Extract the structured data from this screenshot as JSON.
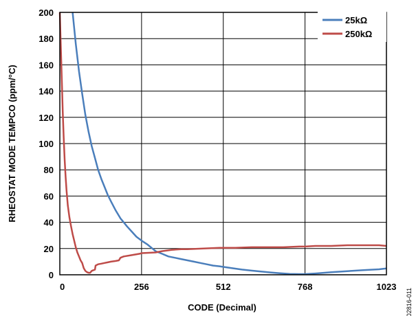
{
  "chart_data": {
    "type": "line",
    "title": "",
    "xlabel": "CODE (Decimal)",
    "ylabel": "RHEOSTAT MODE TEMPCO (ppm/°C)",
    "xlim": [
      0,
      1023
    ],
    "ylim": [
      0,
      200
    ],
    "x_ticks": [
      0,
      256,
      512,
      768,
      1023
    ],
    "x_tick_labels": [
      "0",
      "256",
      "512",
      "768",
      "1023"
    ],
    "y_ticks": [
      0,
      20,
      40,
      60,
      80,
      100,
      120,
      140,
      160,
      180,
      200
    ],
    "y_tick_labels": [
      "0",
      "20",
      "40",
      "60",
      "80",
      "100",
      "120",
      "140",
      "160",
      "180",
      "200"
    ],
    "grid": true,
    "legend_position": "top-right",
    "figure_id": "02816-011",
    "series": [
      {
        "name": "25kΩ",
        "color": "#4a7ebb",
        "x": [
          40,
          50,
          60,
          70,
          80,
          90,
          100,
          110,
          120,
          130,
          140,
          150,
          160,
          175,
          190,
          200,
          210,
          225,
          240,
          256,
          275,
          290,
          300,
          320,
          340,
          360,
          380,
          400,
          420,
          440,
          460,
          480,
          500,
          512,
          540,
          570,
          600,
          630,
          660,
          690,
          720,
          750,
          768,
          800,
          850,
          900,
          950,
          1000,
          1023
        ],
        "y": [
          200,
          176,
          155,
          138,
          122,
          109,
          98,
          89,
          80,
          73,
          67,
          61,
          56,
          49,
          43,
          40,
          37,
          33,
          29,
          26,
          23,
          20,
          18,
          16,
          14,
          13,
          12,
          11,
          10,
          9,
          8,
          7,
          6.5,
          6,
          5,
          4,
          3.2,
          2.5,
          1.8,
          1.2,
          0.7,
          0.5,
          0.5,
          1,
          2,
          2.8,
          3.5,
          4.2,
          4.8
        ]
      },
      {
        "name": "250kΩ",
        "color": "#be4b48",
        "x": [
          0,
          3,
          6,
          9,
          12,
          15,
          18,
          21,
          25,
          30,
          35,
          40,
          45,
          50,
          55,
          60,
          65,
          70,
          75,
          80,
          85,
          90,
          95,
          100,
          105,
          110,
          112,
          120,
          130,
          140,
          150,
          160,
          175,
          185,
          190,
          200,
          225,
          250,
          256,
          300,
          320,
          350,
          380,
          400,
          450,
          500,
          512,
          550,
          600,
          650,
          700,
          750,
          768,
          800,
          850,
          900,
          950,
          1000,
          1023
        ],
        "y": [
          200,
          175,
          150,
          125,
          105,
          88,
          75,
          64,
          53,
          44,
          37,
          31,
          26,
          21,
          17,
          14,
          11,
          9,
          5,
          3,
          2,
          1.5,
          1.5,
          3,
          3.5,
          4,
          7,
          8,
          8.5,
          9,
          9.5,
          10,
          10.5,
          11,
          13,
          14,
          15,
          16,
          16.5,
          17,
          18,
          19,
          19.5,
          19.5,
          20,
          20.5,
          20.5,
          20.5,
          21,
          21,
          21,
          21.5,
          21.5,
          22,
          22,
          22.5,
          22.5,
          22.5,
          22
        ]
      }
    ]
  }
}
